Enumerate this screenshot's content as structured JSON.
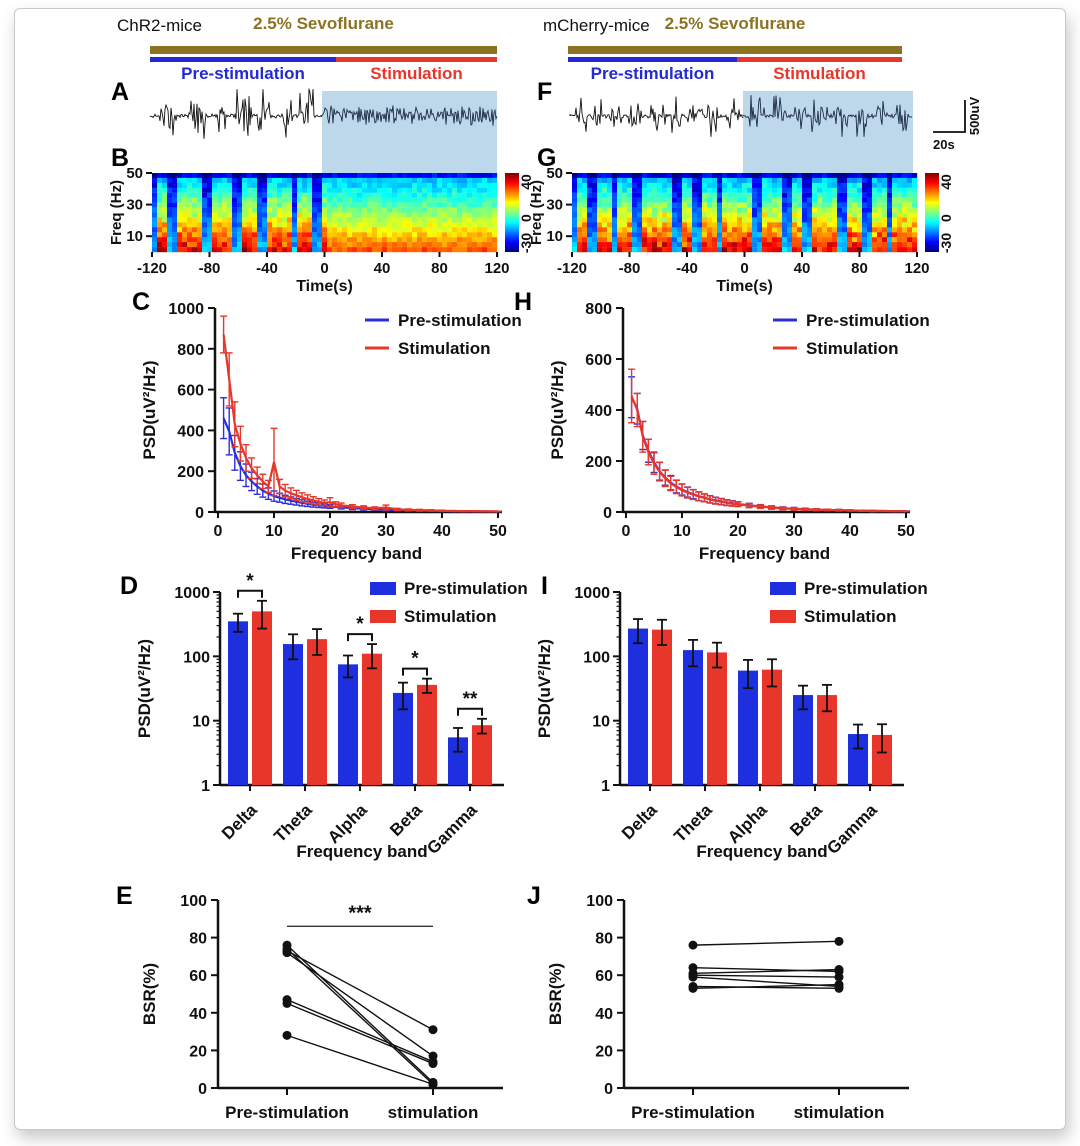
{
  "headers": {
    "left": {
      "mouse": "ChR2-mice",
      "anesthetic": "2.5% Sevoflurane",
      "pre": "Pre-stimulation",
      "stim": "Stimulation"
    },
    "right": {
      "mouse": "mCherry-mice",
      "anesthetic": "2.5% Sevoflurane",
      "pre": "Pre-stimulation",
      "stim": "Stimulation"
    }
  },
  "panel_letters": {
    "A": "A",
    "B": "B",
    "C": "C",
    "D": "D",
    "E": "E",
    "F": "F",
    "G": "G",
    "H": "H",
    "I": "I",
    "J": "J"
  },
  "scale_bar": {
    "amplitude_label": "500uV",
    "time_label": "20s"
  },
  "colors": {
    "pre_stimulation_blue": "#2429d6",
    "stimulation_red": "#e8362a",
    "sevoflurane_bar_olive": "#8a7424",
    "stimulation_shading_blue": "#bdd7eb",
    "trace_black": "#111111",
    "trace_shaded_navy": "#1d2b47"
  },
  "chart_data": [
    {
      "panel": "A",
      "type": "line",
      "subtype": "eeg-trace",
      "group": "ChR2-mice",
      "description": "Raw EEG: burst-suppression pattern pre-stimulation; continuous higher-frequency activity during stimulation (blue shaded region)",
      "x_span_s": [
        -120,
        120
      ]
    },
    {
      "panel": "F",
      "type": "line",
      "subtype": "eeg-trace",
      "group": "mCherry-mice",
      "description": "Raw EEG: burst-suppression pattern persists through both pre-stimulation and stimulation (blue shaded region)",
      "x_span_s": [
        -120,
        120
      ]
    },
    {
      "panel": "B",
      "type": "heatmap",
      "group": "ChR2-mice",
      "xlabel": "Time(s)",
      "ylabel": "Freq (Hz)",
      "xticks": [
        -120,
        -80,
        -40,
        0,
        40,
        80,
        120
      ],
      "yticks": [
        10,
        30,
        50
      ],
      "xlim": [
        -120,
        120
      ],
      "ylim": [
        0,
        50
      ],
      "colorbar_ticks": [
        40,
        0,
        -30
      ],
      "colorbar_range": [
        -30,
        40
      ],
      "description": "Spectrogram: alternating blue suppression stripes before 0 s; continuous mixed power after stimulation onset"
    },
    {
      "panel": "G",
      "type": "heatmap",
      "group": "mCherry-mice",
      "xlabel": "Time(s)",
      "ylabel": "Freq (Hz)",
      "xticks": [
        -120,
        -80,
        -40,
        0,
        40,
        80,
        120
      ],
      "yticks": [
        10,
        30,
        50
      ],
      "xlim": [
        -120,
        120
      ],
      "ylim": [
        0,
        50
      ],
      "colorbar_ticks": [
        40,
        0,
        -30
      ],
      "colorbar_range": [
        -30,
        40
      ],
      "description": "Spectrogram: suppression stripes continue throughout pre-stimulation and stimulation"
    },
    {
      "panel": "C",
      "type": "line",
      "group": "ChR2-mice",
      "xlabel": "Frequency band",
      "ylabel": "PSD(uV²/Hz)",
      "xticks": [
        0,
        10,
        20,
        30,
        40,
        50
      ],
      "yticks": [
        0,
        200,
        400,
        600,
        800,
        1000
      ],
      "xlim": [
        0,
        50
      ],
      "ylim": [
        0,
        1000
      ],
      "legend_position": "top-right",
      "series": [
        {
          "name": "Pre-stimulation",
          "color": "#2c2fd9",
          "points": [
            [
              1,
              460,
              100
            ],
            [
              2,
              395,
              115
            ],
            [
              3,
              290,
              85
            ],
            [
              4,
              225,
              70
            ],
            [
              5,
              180,
              55
            ],
            [
              6,
              150,
              45
            ],
            [
              7,
              125,
              38
            ],
            [
              8,
              105,
              32
            ],
            [
              9,
              90,
              28
            ],
            [
              10,
              78,
              25
            ],
            [
              11,
              70,
              22
            ],
            [
              12,
              62,
              20
            ],
            [
              13,
              56,
              18
            ],
            [
              14,
              50,
              16
            ],
            [
              15,
              45,
              15
            ],
            [
              16,
              40,
              13
            ],
            [
              17,
              36,
              12
            ],
            [
              18,
              33,
              11
            ],
            [
              19,
              30,
              10
            ],
            [
              20,
              27,
              9
            ],
            [
              22,
              23,
              8
            ],
            [
              24,
              19,
              7
            ],
            [
              26,
              16,
              6
            ],
            [
              28,
              13,
              5
            ],
            [
              30,
              11,
              5
            ],
            [
              32,
              9,
              4
            ],
            [
              34,
              8,
              4
            ],
            [
              36,
              7,
              3
            ],
            [
              38,
              6,
              3
            ],
            [
              40,
              5,
              2
            ],
            [
              42,
              4,
              2
            ],
            [
              44,
              4,
              2
            ],
            [
              46,
              3,
              1
            ],
            [
              48,
              3,
              1
            ],
            [
              50,
              2,
              1
            ]
          ]
        },
        {
          "name": "Stimulation",
          "color": "#e8362a",
          "points": [
            [
              1,
              870,
              90
            ],
            [
              2,
              650,
              130
            ],
            [
              3,
              430,
              110
            ],
            [
              4,
              335,
              85
            ],
            [
              5,
              265,
              65
            ],
            [
              6,
              215,
              50
            ],
            [
              7,
              180,
              40
            ],
            [
              8,
              150,
              35
            ],
            [
              9,
              125,
              30
            ],
            [
              10,
              245,
              165
            ],
            [
              11,
              125,
              35
            ],
            [
              12,
              105,
              30
            ],
            [
              13,
              92,
              26
            ],
            [
              14,
              82,
              24
            ],
            [
              15,
              72,
              22
            ],
            [
              16,
              64,
              20
            ],
            [
              17,
              57,
              18
            ],
            [
              18,
              50,
              16
            ],
            [
              19,
              45,
              14
            ],
            [
              20,
              48,
              22
            ],
            [
              21,
              38,
              12
            ],
            [
              22,
              33,
              11
            ],
            [
              24,
              27,
              9
            ],
            [
              26,
              22,
              8
            ],
            [
              28,
              18,
              7
            ],
            [
              30,
              22,
              12
            ],
            [
              32,
              13,
              5
            ],
            [
              34,
              11,
              4
            ],
            [
              36,
              9,
              4
            ],
            [
              38,
              8,
              3
            ],
            [
              40,
              6,
              3
            ],
            [
              42,
              5,
              2
            ],
            [
              44,
              4,
              2
            ],
            [
              46,
              4,
              2
            ],
            [
              48,
              3,
              1
            ],
            [
              50,
              3,
              1
            ]
          ]
        }
      ]
    },
    {
      "panel": "H",
      "type": "line",
      "group": "mCherry-mice",
      "xlabel": "Frequency band",
      "ylabel": "PSD(uV²/Hz)",
      "xticks": [
        0,
        10,
        20,
        30,
        40,
        50
      ],
      "yticks": [
        0,
        200,
        400,
        600,
        800
      ],
      "xlim": [
        0,
        50
      ],
      "ylim": [
        0,
        800
      ],
      "legend_position": "top-right",
      "series": [
        {
          "name": "Pre-stimulation",
          "color": "#2c2fd9",
          "points": [
            [
              1,
              450,
              80
            ],
            [
              2,
              405,
              60
            ],
            [
              3,
              300,
              55
            ],
            [
              4,
              240,
              45
            ],
            [
              5,
              195,
              40
            ],
            [
              6,
              160,
              35
            ],
            [
              7,
              135,
              30
            ],
            [
              8,
              115,
              28
            ],
            [
              9,
              100,
              25
            ],
            [
              10,
              88,
              22
            ],
            [
              11,
              78,
              20
            ],
            [
              12,
              70,
              18
            ],
            [
              13,
              62,
              17
            ],
            [
              14,
              56,
              15
            ],
            [
              15,
              50,
              14
            ],
            [
              16,
              45,
              13
            ],
            [
              17,
              41,
              12
            ],
            [
              18,
              37,
              11
            ],
            [
              19,
              34,
              10
            ],
            [
              20,
              31,
              9
            ],
            [
              22,
              26,
              8
            ],
            [
              24,
              22,
              7
            ],
            [
              26,
              18,
              6
            ],
            [
              28,
              15,
              5
            ],
            [
              30,
              13,
              5
            ],
            [
              32,
              11,
              4
            ],
            [
              34,
              9,
              4
            ],
            [
              36,
              8,
              3
            ],
            [
              38,
              7,
              3
            ],
            [
              40,
              6,
              2
            ],
            [
              42,
              5,
              2
            ],
            [
              44,
              4,
              2
            ],
            [
              46,
              4,
              1
            ],
            [
              48,
              3,
              1
            ],
            [
              50,
              3,
              1
            ]
          ]
        },
        {
          "name": "Stimulation",
          "color": "#e8362a",
          "points": [
            [
              1,
              455,
              105
            ],
            [
              2,
              400,
              65
            ],
            [
              3,
              295,
              60
            ],
            [
              4,
              235,
              50
            ],
            [
              5,
              190,
              42
            ],
            [
              6,
              158,
              36
            ],
            [
              7,
              132,
              32
            ],
            [
              8,
              112,
              28
            ],
            [
              9,
              98,
              26
            ],
            [
              10,
              86,
              23
            ],
            [
              11,
              76,
              21
            ],
            [
              12,
              68,
              19
            ],
            [
              13,
              61,
              17
            ],
            [
              14,
              55,
              15
            ],
            [
              15,
              49,
              14
            ],
            [
              16,
              44,
              13
            ],
            [
              17,
              40,
              12
            ],
            [
              18,
              36,
              11
            ],
            [
              19,
              33,
              10
            ],
            [
              20,
              30,
              9
            ],
            [
              22,
              25,
              8
            ],
            [
              24,
              21,
              7
            ],
            [
              26,
              17,
              6
            ],
            [
              28,
              14,
              5
            ],
            [
              30,
              12,
              5
            ],
            [
              32,
              10,
              4
            ],
            [
              34,
              9,
              4
            ],
            [
              36,
              8,
              3
            ],
            [
              38,
              7,
              3
            ],
            [
              40,
              6,
              2
            ],
            [
              42,
              5,
              2
            ],
            [
              44,
              4,
              2
            ],
            [
              46,
              4,
              1
            ],
            [
              48,
              3,
              1
            ],
            [
              50,
              3,
              1
            ]
          ]
        }
      ]
    },
    {
      "panel": "D",
      "type": "bar",
      "scale": "log",
      "group": "ChR2-mice",
      "xlabel": "Frequency band",
      "ylabel": "PSD(uV²/Hz)",
      "categories": [
        "Delta",
        "Theta",
        "Alpha",
        "Beta",
        "Gamma"
      ],
      "yticks": [
        1,
        10,
        100,
        1000
      ],
      "ylim": [
        1,
        1000
      ],
      "series": [
        {
          "name": "Pre-stimulation",
          "color": "#1e2fe0",
          "values": [
            350,
            155,
            75,
            27,
            5.5
          ],
          "errors": [
            110,
            65,
            28,
            12,
            2.2
          ]
        },
        {
          "name": "Stimulation",
          "color": "#e8362a",
          "values": [
            500,
            185,
            110,
            36,
            8.5
          ],
          "errors": [
            230,
            80,
            45,
            9,
            2.2
          ]
        }
      ],
      "significance": [
        "*",
        "",
        "*",
        "*",
        "**"
      ]
    },
    {
      "panel": "I",
      "type": "bar",
      "scale": "log",
      "group": "mCherry-mice",
      "xlabel": "Frequency band",
      "ylabel": "PSD(uV²/Hz)",
      "categories": [
        "Delta",
        "Theta",
        "Alpha",
        "Beta",
        "Gamma"
      ],
      "yticks": [
        1,
        10,
        100,
        1000
      ],
      "ylim": [
        1,
        1000
      ],
      "series": [
        {
          "name": "Pre-stimulation",
          "color": "#1e2fe0",
          "values": [
            270,
            125,
            60,
            25,
            6.2
          ],
          "errors": [
            110,
            55,
            28,
            10,
            2.5
          ]
        },
        {
          "name": "Stimulation",
          "color": "#e8362a",
          "values": [
            260,
            115,
            62,
            25,
            6.0
          ],
          "errors": [
            110,
            48,
            28,
            11,
            2.8
          ]
        }
      ],
      "significance": [
        "",
        "",
        "",
        "",
        ""
      ]
    },
    {
      "panel": "E",
      "type": "scatter",
      "subtype": "paired-lines",
      "group": "ChR2-mice",
      "ylabel": "BSR(%)",
      "yticks": [
        0,
        20,
        40,
        60,
        80,
        100
      ],
      "ylim": [
        0,
        100
      ],
      "categories": [
        "Pre-stimulation",
        "stimulation"
      ],
      "pairs": [
        [
          76,
          3
        ],
        [
          74,
          2
        ],
        [
          73,
          31
        ],
        [
          72,
          17
        ],
        [
          47,
          14
        ],
        [
          45,
          13
        ],
        [
          28,
          2
        ]
      ],
      "significance": "***"
    },
    {
      "panel": "J",
      "type": "scatter",
      "subtype": "paired-lines",
      "group": "mCherry-mice",
      "ylabel": "BSR(%)",
      "yticks": [
        0,
        20,
        40,
        60,
        80,
        100
      ],
      "ylim": [
        0,
        100
      ],
      "categories": [
        "Pre-stimulation",
        "stimulation"
      ],
      "pairs": [
        [
          76,
          78
        ],
        [
          64,
          62
        ],
        [
          61,
          63
        ],
        [
          60,
          59
        ],
        [
          59,
          54
        ],
        [
          54,
          53
        ],
        [
          53,
          55
        ]
      ],
      "significance": ""
    }
  ]
}
